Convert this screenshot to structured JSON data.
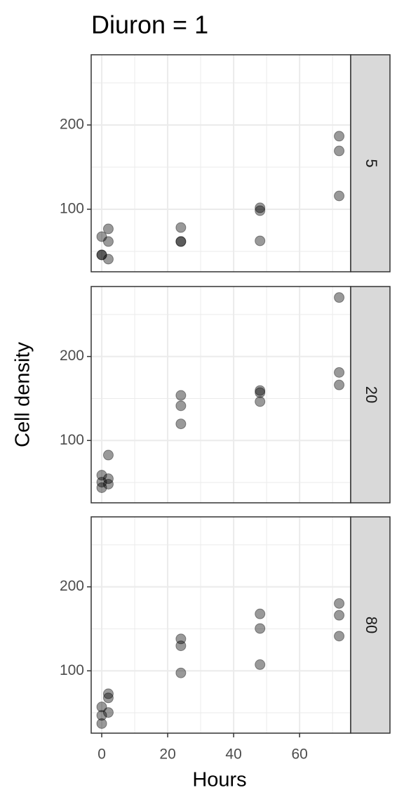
{
  "chart_data": {
    "type": "scatter",
    "title": "Diuron = 1",
    "x_label": "Hours",
    "y_label": "Cell density",
    "xlim": [
      -3.2,
      75.5
    ],
    "xticks": [
      0,
      20,
      40,
      60
    ],
    "minor_xgrid": [
      10,
      30,
      50,
      70
    ],
    "ylim": [
      25.8,
      283.3
    ],
    "yticks": [
      100,
      200
    ],
    "minor_ygrid": [
      50,
      150,
      250
    ],
    "grid": true,
    "color": "#000000",
    "opacity": 0.4,
    "facets": [
      {
        "label": "5",
        "x": [
          0,
          0,
          0,
          2,
          2,
          2,
          24,
          24,
          24,
          48,
          48,
          48,
          72,
          72,
          72
        ],
        "values": [
          67.5,
          45.8,
          45.8,
          76.7,
          61.7,
          40.8,
          78.3,
          61.7,
          61.7,
          101.7,
          98.3,
          62.5,
          186.7,
          169.2,
          115.8
        ]
      },
      {
        "label": "20",
        "x": [
          0,
          0,
          0,
          2,
          2,
          2,
          24,
          24,
          24,
          48,
          48,
          48,
          72,
          72,
          72
        ],
        "values": [
          58.7,
          50.4,
          43.8,
          82.6,
          54.5,
          48,
          153.7,
          141.3,
          119.8,
          159.5,
          157,
          146.3,
          270.2,
          181,
          166.1
        ]
      },
      {
        "label": "80",
        "x": [
          0,
          0,
          0,
          2,
          2,
          2,
          24,
          24,
          24,
          48,
          48,
          48,
          72,
          72,
          72
        ],
        "values": [
          57,
          47,
          37.2,
          72.7,
          67.8,
          50.4,
          138,
          129.8,
          97.5,
          167.8,
          150.4,
          107.4,
          180.2,
          166.1,
          141.3
        ]
      }
    ]
  }
}
